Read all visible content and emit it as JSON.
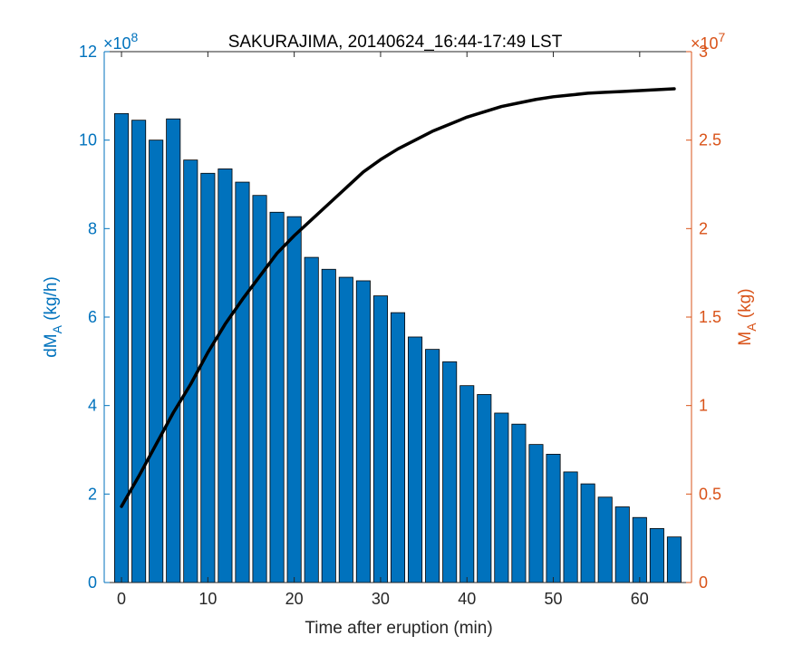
{
  "chart_data": {
    "type": "bar",
    "title": "SAKURAJIMA, 20140624_16:44-17:49 LST",
    "xlabel": "Time after eruption (min)",
    "xlim": [
      -2,
      66
    ],
    "xticks": [
      "0",
      "10",
      "20",
      "30",
      "40",
      "50",
      "60"
    ],
    "colors": {
      "bars": "#0072BD",
      "left_axis": "#0072BD",
      "right_axis": "#D95319",
      "line": "#000000"
    },
    "left_axis": {
      "label_main": "dM",
      "label_sub": "A",
      "label_unit": " (kg/h)",
      "exponent_base": "×10",
      "exponent_power": "8",
      "ylim": [
        0,
        12
      ],
      "ticks": [
        "0",
        "2",
        "4",
        "6",
        "8",
        "10",
        "12"
      ]
    },
    "right_axis": {
      "label_main": "M",
      "label_sub": "A",
      "label_unit": " (kg)",
      "exponent_base": "×10",
      "exponent_power": "7",
      "ylim": [
        0,
        3
      ],
      "ticks": [
        "0",
        "0.5",
        "1",
        "1.5",
        "2",
        "2.5",
        "3"
      ]
    },
    "bars": {
      "x": [
        0,
        2,
        4,
        6,
        8,
        10,
        12,
        14,
        16,
        18,
        20,
        22,
        24,
        26,
        28,
        30,
        32,
        34,
        36,
        38,
        40,
        42,
        44,
        46,
        48,
        50,
        52,
        54,
        56,
        58,
        60,
        62,
        64
      ],
      "values": [
        10.6,
        10.45,
        10.0,
        10.48,
        9.55,
        9.25,
        9.35,
        9.05,
        8.75,
        8.37,
        8.27,
        7.35,
        7.08,
        6.9,
        6.82,
        6.48,
        6.1,
        5.55,
        5.27,
        4.99,
        4.45,
        4.25,
        3.83,
        3.58,
        3.12,
        2.9,
        2.5,
        2.23,
        1.93,
        1.71,
        1.47,
        1.22,
        1.03
      ]
    },
    "line": {
      "x": [
        0,
        2,
        4,
        6,
        8,
        10,
        12,
        14,
        16,
        18,
        20,
        22,
        24,
        26,
        28,
        30,
        32,
        34,
        36,
        38,
        40,
        42,
        44,
        46,
        48,
        50,
        52,
        54,
        56,
        58,
        60,
        62,
        64
      ],
      "values": [
        0.43,
        0.6,
        0.78,
        0.96,
        1.12,
        1.3,
        1.46,
        1.6,
        1.73,
        1.86,
        1.96,
        2.05,
        2.14,
        2.23,
        2.32,
        2.39,
        2.45,
        2.5,
        2.55,
        2.59,
        2.63,
        2.66,
        2.69,
        2.71,
        2.73,
        2.745,
        2.755,
        2.765,
        2.77,
        2.775,
        2.78,
        2.785,
        2.79
      ]
    }
  }
}
